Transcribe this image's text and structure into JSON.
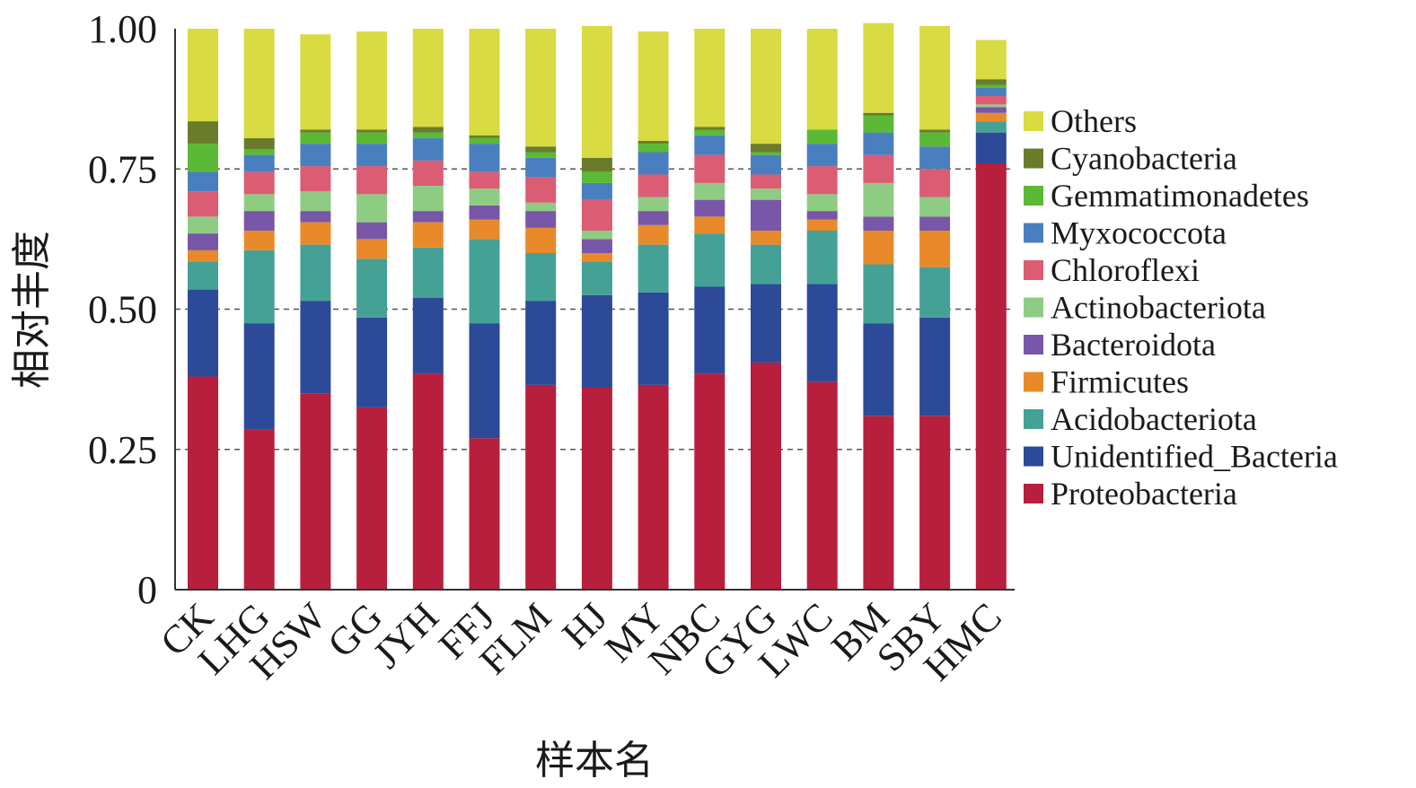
{
  "chart_data": {
    "type": "bar",
    "stacked": true,
    "xlabel": "样本名",
    "ylabel": "相对丰度",
    "ylim": [
      0,
      1
    ],
    "yticks": [
      0,
      0.25,
      0.5,
      0.75,
      1.0
    ],
    "ytick_labels": [
      "0",
      "0.25",
      "0.50",
      "0.75",
      "1.00"
    ],
    "grid": "dashed horizontal at 0.25, 0.50, 0.75",
    "legend_position": "right",
    "categories": [
      "CK",
      "LHG",
      "HSW",
      "GG",
      "JYH",
      "FFJ",
      "FLM",
      "HJ",
      "MY",
      "NBC",
      "GYG",
      "LWC",
      "BM",
      "SBY",
      "HMC"
    ],
    "series": [
      {
        "name": "Proteobacteria",
        "color": "#b71f3d",
        "values": [
          0.38,
          0.285,
          0.35,
          0.325,
          0.385,
          0.27,
          0.365,
          0.36,
          0.365,
          0.385,
          0.405,
          0.37,
          0.31,
          0.31,
          0.76
        ]
      },
      {
        "name": "Unidentified_Bacteria",
        "color": "#2d4a98",
        "values": [
          0.155,
          0.19,
          0.165,
          0.16,
          0.135,
          0.205,
          0.15,
          0.165,
          0.165,
          0.155,
          0.14,
          0.175,
          0.165,
          0.175,
          0.055
        ]
      },
      {
        "name": "Acidobacteriota",
        "color": "#45a196",
        "values": [
          0.05,
          0.13,
          0.1,
          0.105,
          0.09,
          0.15,
          0.085,
          0.06,
          0.085,
          0.095,
          0.07,
          0.095,
          0.105,
          0.09,
          0.02
        ]
      },
      {
        "name": "Firmicutes",
        "color": "#e98a2a",
        "values": [
          0.02,
          0.035,
          0.04,
          0.035,
          0.045,
          0.035,
          0.045,
          0.015,
          0.035,
          0.03,
          0.025,
          0.02,
          0.06,
          0.065,
          0.015
        ]
      },
      {
        "name": "Bacteroidota",
        "color": "#7857a8",
        "values": [
          0.03,
          0.035,
          0.02,
          0.03,
          0.02,
          0.025,
          0.03,
          0.025,
          0.025,
          0.03,
          0.055,
          0.015,
          0.025,
          0.025,
          0.01
        ]
      },
      {
        "name": "Actinobacteriota",
        "color": "#8fcc83",
        "values": [
          0.03,
          0.03,
          0.035,
          0.05,
          0.045,
          0.03,
          0.015,
          0.015,
          0.025,
          0.03,
          0.02,
          0.03,
          0.06,
          0.035,
          0.005
        ]
      },
      {
        "name": "Chloroflexi",
        "color": "#da5d74",
        "values": [
          0.045,
          0.04,
          0.045,
          0.05,
          0.045,
          0.03,
          0.045,
          0.055,
          0.04,
          0.05,
          0.025,
          0.05,
          0.05,
          0.05,
          0.015
        ]
      },
      {
        "name": "Myxococcota",
        "color": "#4a7fbf",
        "values": [
          0.035,
          0.03,
          0.04,
          0.04,
          0.04,
          0.05,
          0.035,
          0.03,
          0.04,
          0.035,
          0.035,
          0.04,
          0.04,
          0.04,
          0.015
        ]
      },
      {
        "name": "Gemmatimonadetes",
        "color": "#5bb935",
        "values": [
          0.05,
          0.01,
          0.02,
          0.02,
          0.01,
          0.01,
          0.01,
          0.02,
          0.015,
          0.01,
          0.005,
          0.025,
          0.03,
          0.025,
          0.005
        ]
      },
      {
        "name": "Cyanobacteria",
        "color": "#6a7c2b",
        "values": [
          0.04,
          0.02,
          0.005,
          0.005,
          0.01,
          0.005,
          0.01,
          0.025,
          0.005,
          0.005,
          0.015,
          0.0,
          0.005,
          0.005,
          0.01
        ]
      },
      {
        "name": "Others",
        "color": "#d8db41",
        "values": [
          0.165,
          0.195,
          0.17,
          0.175,
          0.175,
          0.19,
          0.21,
          0.235,
          0.195,
          0.175,
          0.205,
          0.18,
          0.16,
          0.185,
          0.07
        ]
      }
    ],
    "legend_order": [
      "Others",
      "Cyanobacteria",
      "Gemmatimonadetes",
      "Myxococcota",
      "Chloroflexi",
      "Actinobacteriota",
      "Bacteroidota",
      "Firmicutes",
      "Acidobacteriota",
      "Unidentified_Bacteria",
      "Proteobacteria"
    ]
  }
}
